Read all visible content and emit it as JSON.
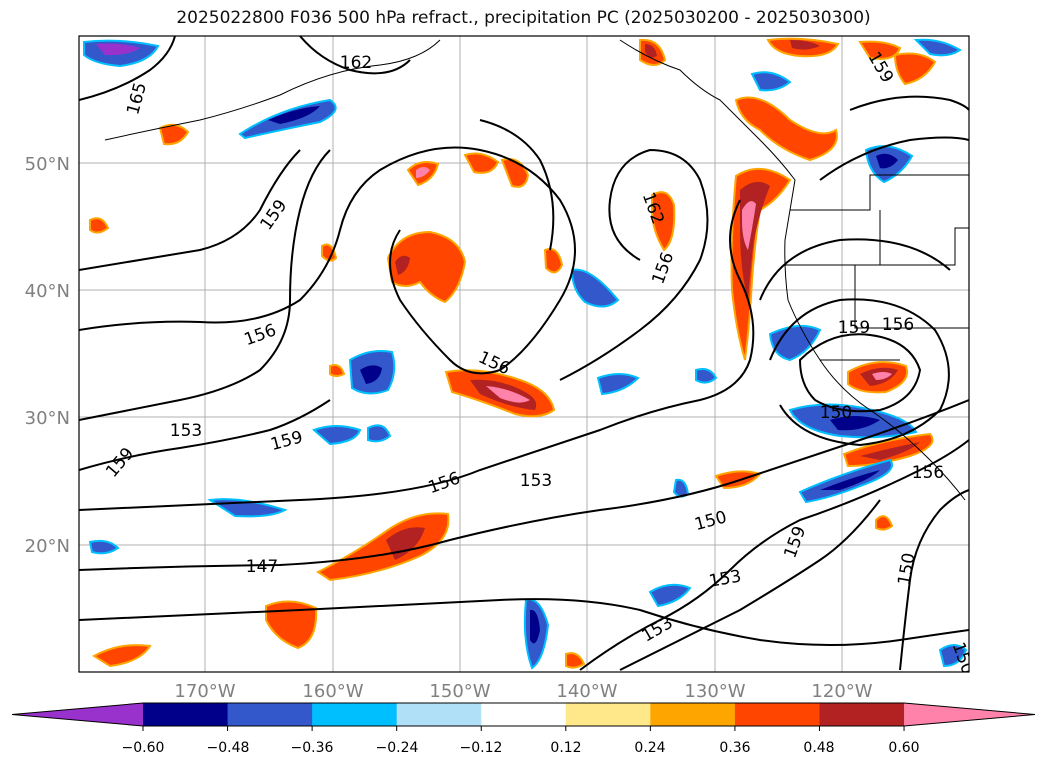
{
  "title": "2025022800 F036 500 hPa refract., precipitation PC (2025030200 - 2025030300)",
  "map": {
    "lat_labels": [
      "50°N",
      "40°N",
      "30°N",
      "20°N"
    ],
    "lon_labels": [
      "170°W",
      "160°W",
      "150°W",
      "140°W",
      "130°W",
      "120°W"
    ],
    "contour_labels": [
      "165",
      "162",
      "159",
      "156",
      "153",
      "150",
      "147",
      "159",
      "156",
      "153",
      "159",
      "156",
      "150",
      "159",
      "156",
      "162",
      "156",
      "150",
      "159",
      "153",
      "150",
      "153",
      "156",
      "159"
    ]
  },
  "colorbar": {
    "ticks": [
      "−0.60",
      "−0.48",
      "−0.36",
      "−0.24",
      "−0.12",
      "0.12",
      "0.24",
      "0.36",
      "0.48",
      "0.60"
    ],
    "colors": [
      "#9932cc",
      "#00008b",
      "#3258cc",
      "#00bfff",
      "#b0e0f8",
      "#ffffff",
      "#ffe88a",
      "#ffa500",
      "#ff4500",
      "#b22222",
      "#ff82aa"
    ]
  }
}
